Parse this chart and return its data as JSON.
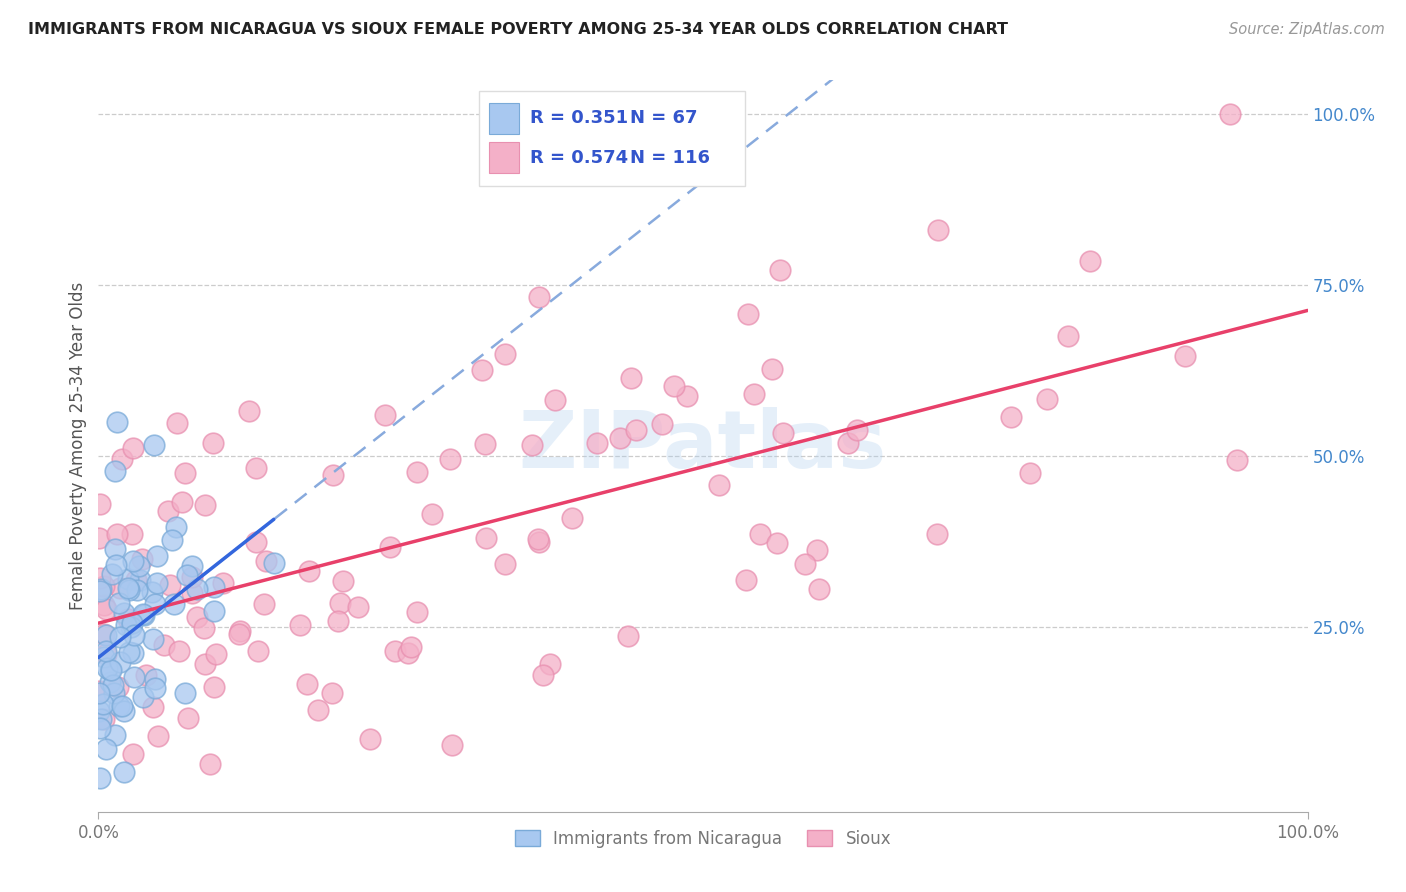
{
  "title": "IMMIGRANTS FROM NICARAGUA VS SIOUX FEMALE POVERTY AMONG 25-34 YEAR OLDS CORRELATION CHART",
  "source": "Source: ZipAtlas.com",
  "ylabel": "Female Poverty Among 25-34 Year Olds",
  "xlim": [
    0,
    1.0
  ],
  "ylim": [
    -0.02,
    1.05
  ],
  "xtick_vals": [
    0.0,
    1.0
  ],
  "xtick_labels": [
    "0.0%",
    "100.0%"
  ],
  "ytick_positions": [
    0.25,
    0.5,
    0.75,
    1.0
  ],
  "ytick_labels": [
    "25.0%",
    "50.0%",
    "75.0%",
    "100.0%"
  ],
  "watermark": "ZIPatlas",
  "series1_color": "#a8c8f0",
  "series1_edge": "#7aaad8",
  "series2_color": "#f4b0c8",
  "series2_edge": "#e890b0",
  "trendline1_color": "#3366dd",
  "trendline2_color": "#e8406a",
  "dashed_color": "#88aadd",
  "grid_color": "#cccccc",
  "background_color": "#ffffff",
  "R1": 0.351,
  "N1": 67,
  "R2": 0.574,
  "N2": 116,
  "legend_blue_color": "#a8c8f0",
  "legend_pink_color": "#f4b0c8",
  "legend_text_color": "#3355cc",
  "legend_r_color": "#000000",
  "title_color": "#222222",
  "source_color": "#999999",
  "axis_label_color": "#555555",
  "tick_color": "#777777",
  "right_tick_color": "#4488cc"
}
